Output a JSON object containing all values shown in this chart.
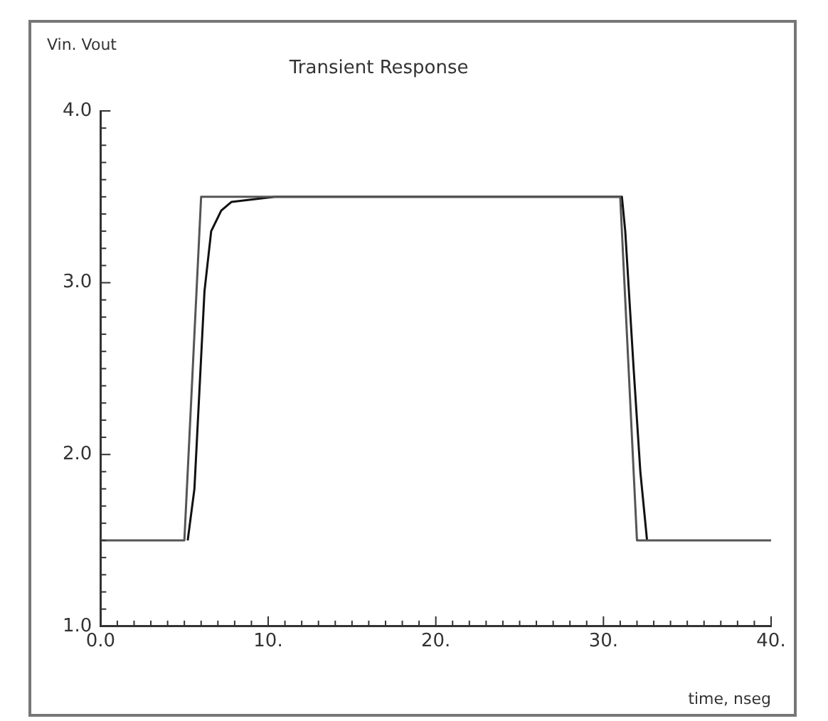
{
  "chart_data": {
    "type": "line",
    "title": "Transient Response",
    "xlabel": "time, nseg",
    "ylabel": "Vin. Vout",
    "series": [
      {
        "color": "#555555",
        "x": [
          0,
          5,
          6,
          31,
          32,
          40
        ],
        "values": [
          1.5,
          1.5,
          3.5,
          3.5,
          1.5,
          1.5
        ]
      },
      {
        "color": "#111111",
        "x": [
          5.2,
          5.6,
          6.2,
          6.6,
          7.2,
          7.8,
          10.4,
          31.1,
          31.3,
          31.8,
          32.2,
          32.6
        ],
        "values": [
          1.5,
          1.8,
          2.95,
          3.3,
          3.42,
          3.47,
          3.5,
          3.5,
          3.3,
          2.5,
          1.9,
          1.5
        ]
      }
    ],
    "xlim": [
      0,
      40
    ],
    "ylim": [
      1,
      4
    ],
    "xticks": [
      {
        "value": 0,
        "label": "0.0"
      },
      {
        "value": 1,
        "label": null
      },
      {
        "value": 2,
        "label": null
      },
      {
        "value": 3,
        "label": null
      },
      {
        "value": 4,
        "label": null
      },
      {
        "value": 5,
        "label": null
      },
      {
        "value": 6,
        "label": null
      },
      {
        "value": 7,
        "label": null
      },
      {
        "value": 8,
        "label": null
      },
      {
        "value": 9,
        "label": null
      },
      {
        "value": 10,
        "label": "10."
      },
      {
        "value": 11,
        "label": null
      },
      {
        "value": 12,
        "label": null
      },
      {
        "value": 13,
        "label": null
      },
      {
        "value": 14,
        "label": null
      },
      {
        "value": 15,
        "label": null
      },
      {
        "value": 16,
        "label": null
      },
      {
        "value": 17,
        "label": null
      },
      {
        "value": 18,
        "label": null
      },
      {
        "value": 19,
        "label": null
      },
      {
        "value": 20,
        "label": "20."
      },
      {
        "value": 21,
        "label": null
      },
      {
        "value": 22,
        "label": null
      },
      {
        "value": 23,
        "label": null
      },
      {
        "value": 24,
        "label": null
      },
      {
        "value": 25,
        "label": null
      },
      {
        "value": 26,
        "label": null
      },
      {
        "value": 27,
        "label": null
      },
      {
        "value": 28,
        "label": null
      },
      {
        "value": 29,
        "label": null
      },
      {
        "value": 30,
        "label": "30."
      },
      {
        "value": 31,
        "label": null
      },
      {
        "value": 32,
        "label": null
      },
      {
        "value": 33,
        "label": null
      },
      {
        "value": 34,
        "label": null
      },
      {
        "value": 35,
        "label": null
      },
      {
        "value": 36,
        "label": null
      },
      {
        "value": 37,
        "label": null
      },
      {
        "value": 38,
        "label": null
      },
      {
        "value": 39,
        "label": null
      },
      {
        "value": 40,
        "label": "40."
      }
    ],
    "yticks": [
      {
        "value": 1,
        "label": "1.0"
      },
      {
        "value": 1.1,
        "label": null
      },
      {
        "value": 1.2,
        "label": null
      },
      {
        "value": 1.3,
        "label": null
      },
      {
        "value": 1.4,
        "label": null
      },
      {
        "value": 1.5,
        "label": null
      },
      {
        "value": 1.6,
        "label": null
      },
      {
        "value": 1.7,
        "label": null
      },
      {
        "value": 1.8,
        "label": null
      },
      {
        "value": 1.9,
        "label": null
      },
      {
        "value": 2,
        "label": "2.0"
      },
      {
        "value": 2.1,
        "label": null
      },
      {
        "value": 2.2,
        "label": null
      },
      {
        "value": 2.3,
        "label": null
      },
      {
        "value": 2.4,
        "label": null
      },
      {
        "value": 2.5,
        "label": null
      },
      {
        "value": 2.6,
        "label": null
      },
      {
        "value": 2.7,
        "label": null
      },
      {
        "value": 2.8,
        "label": null
      },
      {
        "value": 2.9,
        "label": null
      },
      {
        "value": 3,
        "label": "3.0"
      },
      {
        "value": 3.1,
        "label": null
      },
      {
        "value": 3.2,
        "label": null
      },
      {
        "value": 3.3,
        "label": null
      },
      {
        "value": 3.4,
        "label": null
      },
      {
        "value": 3.5,
        "label": null
      },
      {
        "value": 3.6,
        "label": null
      },
      {
        "value": 3.7,
        "label": null
      },
      {
        "value": 3.8,
        "label": null
      },
      {
        "value": 3.9,
        "label": null
      },
      {
        "value": 4,
        "label": "4.0"
      }
    ],
    "grid": false,
    "legend": false
  }
}
